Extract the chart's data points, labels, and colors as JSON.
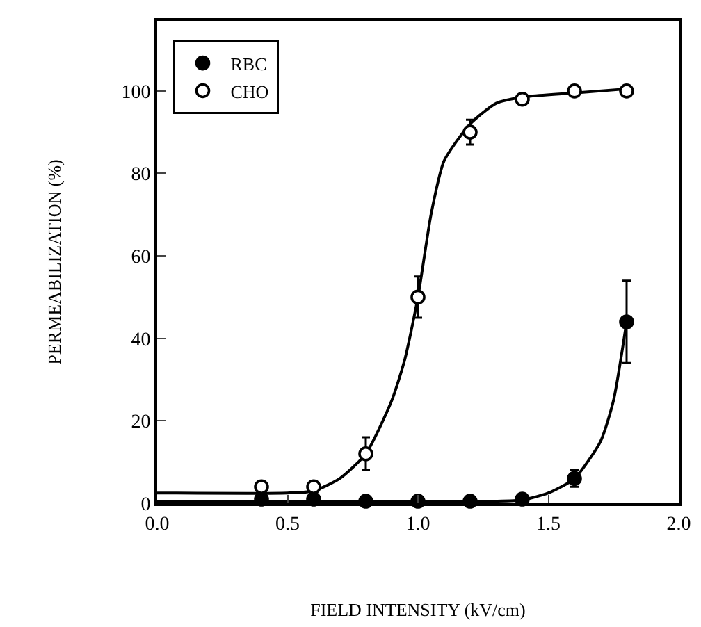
{
  "chart_data": {
    "type": "scatter",
    "xlabel": "FIELD INTENSITY (kV/cm)",
    "ylabel": "PERMEABILIZATION (%)",
    "xlim": [
      0,
      2
    ],
    "xticks": [
      {
        "value": 0,
        "label": "0.0"
      },
      0.5,
      {
        "value": 1,
        "label": "1.0"
      },
      1.5,
      {
        "value": 2,
        "label": "2.0"
      }
    ],
    "ylim": [
      0,
      117
    ],
    "yticks": [
      0,
      20,
      40,
      60,
      80,
      100
    ],
    "grid": false,
    "legend": "top left",
    "marker": "circle",
    "series": [
      {
        "type": "line",
        "marker": "none",
        "color": "#000000",
        "x": [
          0,
          0.5,
          0.6,
          0.7,
          0.8,
          0.9,
          0.95,
          1.0,
          1.05,
          1.1,
          1.2,
          1.3,
          1.4,
          1.6,
          1.8
        ],
        "values": [
          2.5,
          2.5,
          3,
          6,
          12,
          25,
          35,
          50,
          70,
          83,
          92,
          97,
          98.5,
          99.5,
          100.5
        ]
      },
      {
        "type": "line",
        "marker": "none",
        "color": "#000000",
        "x": [
          0,
          0.5,
          1.0,
          1.3,
          1.4,
          1.5,
          1.6,
          1.7,
          1.75,
          1.8
        ],
        "values": [
          0.5,
          0.5,
          0.5,
          0.5,
          0.8,
          2.5,
          6,
          15,
          25,
          44
        ]
      },
      {
        "name": "RBC",
        "color": "#000000",
        "x": [
          0.4,
          0.6,
          0.8,
          1.0,
          1.2,
          1.4,
          1.6,
          1.8
        ],
        "values": [
          1,
          1,
          0.5,
          0.5,
          0.5,
          1,
          6,
          44
        ],
        "errors": [
          null,
          null,
          null,
          null,
          null,
          null,
          2,
          10
        ]
      },
      {
        "name": "CHO",
        "color": "#ffffff",
        "x": [
          0.4,
          0.6,
          0.8,
          1.0,
          1.2,
          1.4,
          1.6,
          1.8
        ],
        "values": [
          4,
          4,
          12,
          50,
          90,
          98,
          100,
          100
        ],
        "errors": [
          null,
          null,
          4,
          5,
          3,
          null,
          null,
          null
        ]
      }
    ]
  }
}
